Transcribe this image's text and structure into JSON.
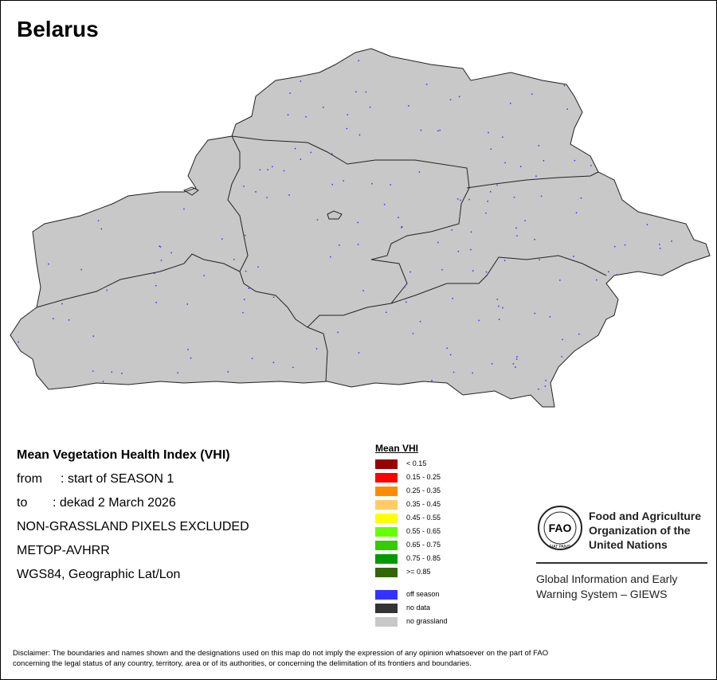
{
  "header": {
    "title": "Belarus"
  },
  "info": {
    "title": "Mean Vegetation Health Index (VHI)",
    "lines": [
      {
        "label": "from",
        "value": ": start of SEASON 1"
      },
      {
        "label": "to",
        "value": ": dekad 2 March 2026"
      }
    ],
    "notes": [
      "NON-GRASSLAND PIXELS EXCLUDED",
      "METOP-AVHRR",
      "WGS84, Geographic Lat/Lon"
    ]
  },
  "legend": {
    "title": "Mean VHI",
    "items": [
      {
        "label": "< 0.15",
        "color": "#990000"
      },
      {
        "label": "0.15 - 0.25",
        "color": "#ff0000"
      },
      {
        "label": "0.25 - 0.35",
        "color": "#ff8c00"
      },
      {
        "label": "0.35 - 0.45",
        "color": "#ffcc66"
      },
      {
        "label": "0.45 - 0.55",
        "color": "#ffff00"
      },
      {
        "label": "0.55 - 0.65",
        "color": "#66ff00"
      },
      {
        "label": "0.65 - 0.75",
        "color": "#33cc00"
      },
      {
        "label": "0.75 - 0.85",
        "color": "#009900"
      },
      {
        "label": ">= 0.85",
        "color": "#336600"
      }
    ],
    "extra_items": [
      {
        "label": "off season",
        "color": "#3333ff"
      },
      {
        "label": "no data",
        "color": "#333333"
      },
      {
        "label": "no grassland",
        "color": "#c8c8c8"
      }
    ]
  },
  "organization": {
    "logo_text": "FAO",
    "logo_motto": "FIAT PANIS",
    "name_lines": [
      "Food and Agriculture",
      "Organization of the",
      "United Nations"
    ],
    "system_lines": [
      "Global Information and Early",
      "Warning System – GIEWS"
    ]
  },
  "disclaimer": [
    "Disclaimer: The boundaries and names shown and the designations used on this map do not imply the expression of any opinion whatsoever on the part of FAO",
    "concerning the legal status of any country, territory, area or of its authorities, or concerning the delimitation of its frontiers and boundaries."
  ]
}
